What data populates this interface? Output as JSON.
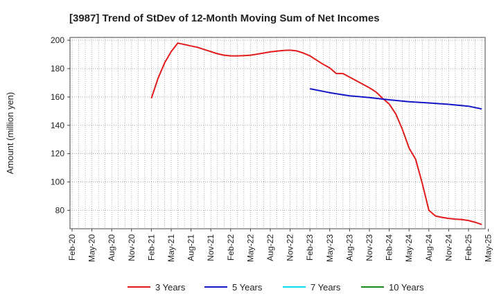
{
  "chart_data": {
    "type": "line",
    "title": "[3987]  Trend of StDev of 12-Month Moving Sum of Net Incomes",
    "ylabel": "Amount (million yen)",
    "xlabel": "",
    "x_ticks": [
      "Feb-20",
      "May-20",
      "Aug-20",
      "Nov-20",
      "Feb-21",
      "May-21",
      "Aug-21",
      "Nov-21",
      "Feb-22",
      "May-22",
      "Aug-22",
      "Nov-22",
      "Feb-23",
      "May-23",
      "Aug-23",
      "Nov-23",
      "Feb-24",
      "May-24",
      "Aug-24",
      "Nov-24",
      "Feb-25",
      "May-25"
    ],
    "y_ticks": [
      80,
      100,
      120,
      140,
      160,
      180,
      200
    ],
    "ylim": [
      67,
      202
    ],
    "grid": true,
    "legend_position": "bottom",
    "series": [
      {
        "name": "3 Years",
        "color": "#e41a1a",
        "points": [
          [
            "Feb-21",
            159
          ],
          [
            "Mar-21",
            173
          ],
          [
            "Apr-21",
            184
          ],
          [
            "May-21",
            192
          ],
          [
            "Jun-21",
            198
          ],
          [
            "Jul-21",
            197
          ],
          [
            "Aug-21",
            196
          ],
          [
            "Sep-21",
            195
          ],
          [
            "Oct-21",
            193.5
          ],
          [
            "Nov-21",
            192
          ],
          [
            "Dec-21",
            190.5
          ],
          [
            "Jan-22",
            189.5
          ],
          [
            "Feb-22",
            189
          ],
          [
            "Mar-22",
            189
          ],
          [
            "Apr-22",
            189.2
          ],
          [
            "May-22",
            189.5
          ],
          [
            "Jun-22",
            190.2
          ],
          [
            "Jul-22",
            191
          ],
          [
            "Aug-22",
            191.8
          ],
          [
            "Sep-22",
            192.3
          ],
          [
            "Oct-22",
            192.8
          ],
          [
            "Nov-22",
            193
          ],
          [
            "Dec-22",
            192.5
          ],
          [
            "Jan-23",
            191
          ],
          [
            "Feb-23",
            189
          ],
          [
            "Mar-23",
            186
          ],
          [
            "Apr-23",
            183
          ],
          [
            "May-23",
            180.5
          ],
          [
            "Jun-23",
            176.5
          ],
          [
            "Jul-23",
            176.5
          ],
          [
            "Aug-23",
            174
          ],
          [
            "Sep-23",
            171.5
          ],
          [
            "Oct-23",
            169
          ],
          [
            "Nov-23",
            166.5
          ],
          [
            "Dec-23",
            163.5
          ],
          [
            "Jan-24",
            159
          ],
          [
            "Feb-24",
            155
          ],
          [
            "Mar-24",
            148
          ],
          [
            "Apr-24",
            137
          ],
          [
            "May-24",
            124
          ],
          [
            "Jun-24",
            116
          ],
          [
            "Jul-24",
            99
          ],
          [
            "Aug-24",
            80
          ],
          [
            "Sep-24",
            76
          ],
          [
            "Oct-24",
            75
          ],
          [
            "Nov-24",
            74.3
          ],
          [
            "Dec-24",
            73.8
          ],
          [
            "Jan-25",
            73.5
          ],
          [
            "Feb-25",
            72.8
          ],
          [
            "Mar-25",
            71.6
          ],
          [
            "Apr-25",
            70
          ]
        ]
      },
      {
        "name": "5 Years",
        "color": "#1414c8",
        "points": [
          [
            "Feb-23",
            165.8
          ],
          [
            "May-23",
            163
          ],
          [
            "Aug-23",
            160.8
          ],
          [
            "Nov-23",
            159.6
          ],
          [
            "Feb-24",
            158
          ],
          [
            "May-24",
            156.6
          ],
          [
            "Aug-24",
            155.8
          ],
          [
            "Nov-24",
            154.8
          ],
          [
            "Feb-25",
            153.5
          ],
          [
            "Apr-25",
            151.5
          ]
        ]
      },
      {
        "name": "7 Years",
        "color": "#00e5ee",
        "points": []
      },
      {
        "name": "10 Years",
        "color": "#1a8a1a",
        "points": []
      }
    ]
  }
}
